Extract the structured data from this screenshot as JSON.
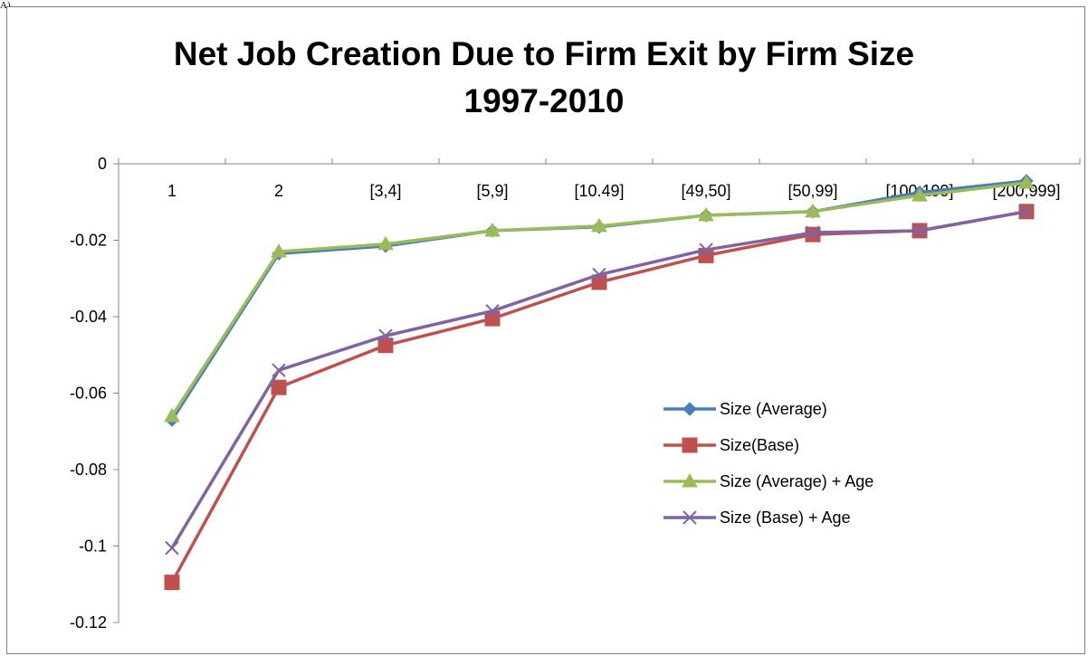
{
  "corner_mark": "A).",
  "chart_data": {
    "type": "line",
    "title_lines": [
      "Net Job Creation Due to Firm Exit by Firm Size",
      "1997-2010"
    ],
    "xlabel": "",
    "ylabel": "",
    "categories": [
      "1",
      "2",
      "[3,4]",
      "[5,9]",
      "[10.49]",
      "[49,50]",
      "[50,99]",
      "[100,199]",
      "[200,999]"
    ],
    "ylim": [
      -0.12,
      0
    ],
    "y_ticks": [
      0,
      -0.02,
      -0.04,
      -0.06,
      -0.08,
      -0.1,
      -0.12
    ],
    "y_tick_labels": [
      "0",
      "-0.02",
      "-0.04",
      "-0.06",
      "-0.08",
      "-0.1",
      "-0.12"
    ],
    "grid": false,
    "legend_position": "right",
    "series": [
      {
        "name": "Size (Average)",
        "color": "#4a7ebb",
        "marker": "diamond",
        "values": [
          -0.067,
          -0.0235,
          -0.0215,
          -0.0175,
          -0.0165,
          -0.0135,
          -0.0125,
          -0.0075,
          -0.0045
        ]
      },
      {
        "name": "Size(Base)",
        "color": "#c0504d",
        "marker": "square",
        "values": [
          -0.1095,
          -0.0585,
          -0.0475,
          -0.0405,
          -0.031,
          -0.024,
          -0.0185,
          -0.0175,
          -0.0125
        ]
      },
      {
        "name": "Size (Average) + Age",
        "color": "#9bbb59",
        "marker": "triangle",
        "values": [
          -0.066,
          -0.023,
          -0.021,
          -0.0175,
          -0.0163,
          -0.0135,
          -0.0125,
          -0.0083,
          -0.005
        ]
      },
      {
        "name": "Size (Base) + Age",
        "color": "#8064a2",
        "marker": "x",
        "values": [
          -0.1005,
          -0.054,
          -0.045,
          -0.0385,
          -0.029,
          -0.0225,
          -0.018,
          -0.0175,
          -0.0125
        ]
      }
    ]
  }
}
